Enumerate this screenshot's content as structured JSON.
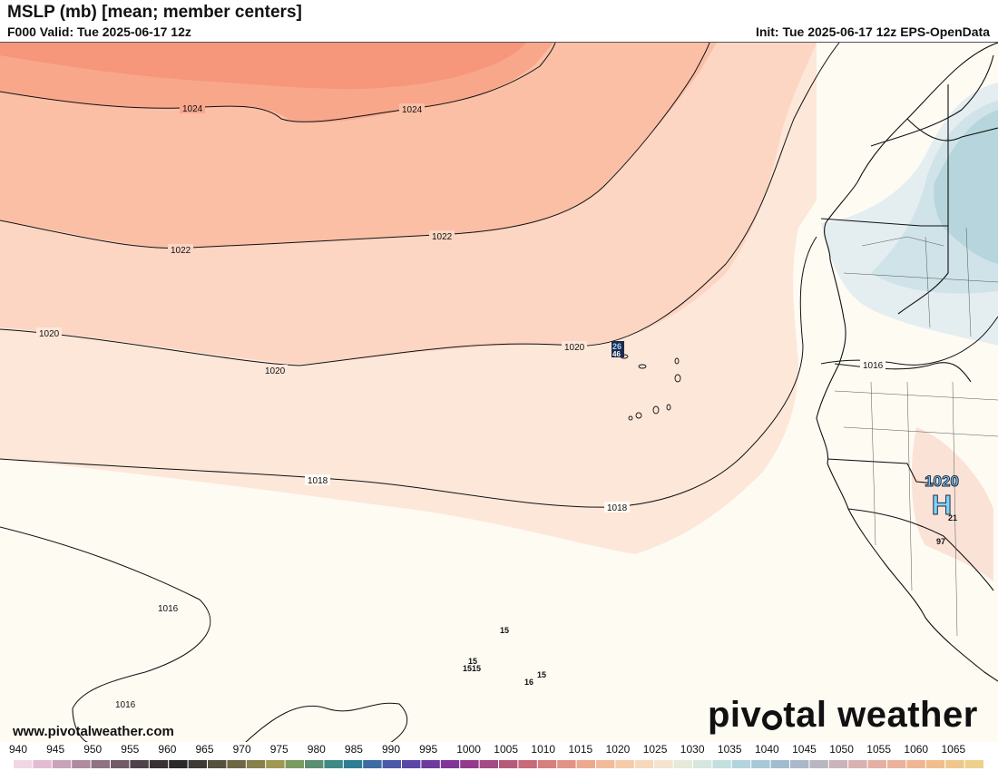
{
  "header": {
    "title": "MSLP (mb) [mean; member centers]",
    "valid": "F000 Valid: Tue 2025-06-17 12z",
    "init": "Init: Tue 2025-06-17 12z EPS-OpenData"
  },
  "map": {
    "isobar_labels": [
      "1024",
      "1024",
      "1022",
      "1022",
      "1020",
      "1020",
      "1020",
      "1018",
      "1018",
      "1016",
      "1016",
      "1016"
    ],
    "high_center": {
      "letter": "H",
      "value": "1020"
    },
    "member_center_labels": [
      "26",
      "46",
      "21",
      "97",
      "15",
      "15",
      "1515",
      "15",
      "16"
    ]
  },
  "footer": {
    "website": "www.pivotalweather.com",
    "brand_left": "piv",
    "brand_right": "tal weather"
  },
  "scale": {
    "labels": [
      "940",
      "945",
      "950",
      "955",
      "960",
      "965",
      "970",
      "975",
      "980",
      "985",
      "990",
      "995",
      "1000",
      "1005",
      "1010",
      "1015",
      "1020",
      "1025",
      "1030",
      "1035",
      "1040",
      "1045",
      "1050",
      "1055",
      "1060",
      "1065"
    ],
    "colors": [
      "#f2d6e4",
      "#e2bdd2",
      "#c9a4b8",
      "#ae8b9e",
      "#8e7383",
      "#6f5b67",
      "#4f434a",
      "#383236",
      "#2b2a2a",
      "#3e3b36",
      "#55513f",
      "#6d6745",
      "#87804c",
      "#9f9752",
      "#7a9a60",
      "#5c8e72",
      "#3f8a86",
      "#2e7e93",
      "#3c6ca2",
      "#4b59a8",
      "#5b47a5",
      "#6e3a9e",
      "#813596",
      "#943a8d",
      "#a44a84",
      "#b65a7c",
      "#c66b7a",
      "#d57f7e",
      "#e29484",
      "#eca98e",
      "#f2bb9a",
      "#f6cbaa",
      "#f6d9bd",
      "#f2e4cf",
      "#e6ead8",
      "#d6e7dd",
      "#c3dfdf",
      "#b2d4dd",
      "#a7c8d7",
      "#a2bccf",
      "#aab8c9",
      "#b9b6c2",
      "#c9b4ba",
      "#d8b1b1",
      "#e4b0a6",
      "#eab29b",
      "#eeb692",
      "#efbe8c",
      "#efc78a",
      "#edd08c"
    ]
  }
}
